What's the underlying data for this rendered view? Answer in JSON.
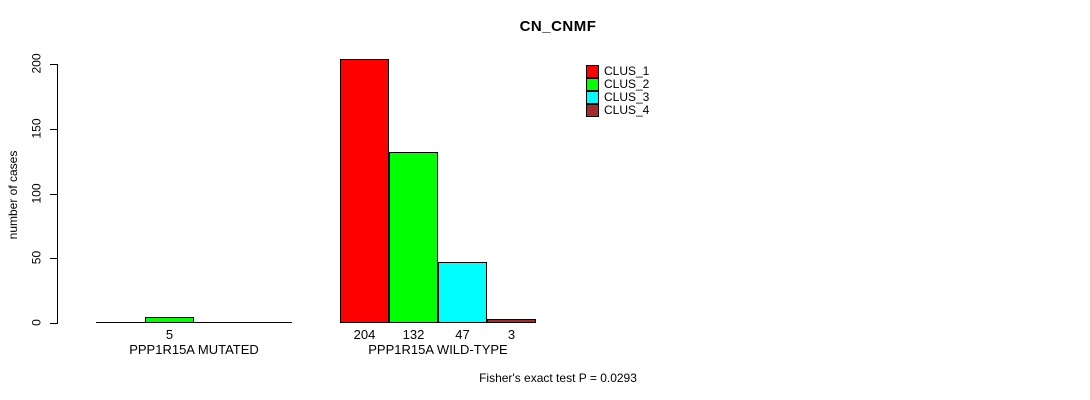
{
  "title": "CN_CNMF",
  "y_axis": {
    "label": "number of cases",
    "ticks": [
      0,
      50,
      100,
      150,
      200
    ]
  },
  "legend": [
    {
      "label": "CLUS_1",
      "color": "#FF0000"
    },
    {
      "label": "CLUS_2",
      "color": "#00FF00"
    },
    {
      "label": "CLUS_3",
      "color": "#00FFFF"
    },
    {
      "label": "CLUS_4",
      "color": "#A52A2A"
    }
  ],
  "footer": "Fisher's exact test P = 0.0293",
  "chart_data": {
    "type": "bar",
    "title": "CN_CNMF",
    "xlabel": "",
    "ylabel": "number of cases",
    "ylim": [
      0,
      200
    ],
    "yticks": [
      0,
      50,
      100,
      150,
      200
    ],
    "grid": false,
    "legend_position": "top-right-inside",
    "categories": [
      "PPP1R15A MUTATED",
      "PPP1R15A WILD-TYPE"
    ],
    "series": [
      {
        "name": "CLUS_1",
        "color": "#FF0000",
        "values": [
          0,
          204
        ]
      },
      {
        "name": "CLUS_2",
        "color": "#00FF00",
        "values": [
          5,
          132
        ]
      },
      {
        "name": "CLUS_3",
        "color": "#00FFFF",
        "values": [
          0,
          47
        ]
      },
      {
        "name": "CLUS_4",
        "color": "#A52A2A",
        "values": [
          0,
          3
        ]
      }
    ],
    "annotation": "Fisher's exact test P = 0.0293"
  }
}
